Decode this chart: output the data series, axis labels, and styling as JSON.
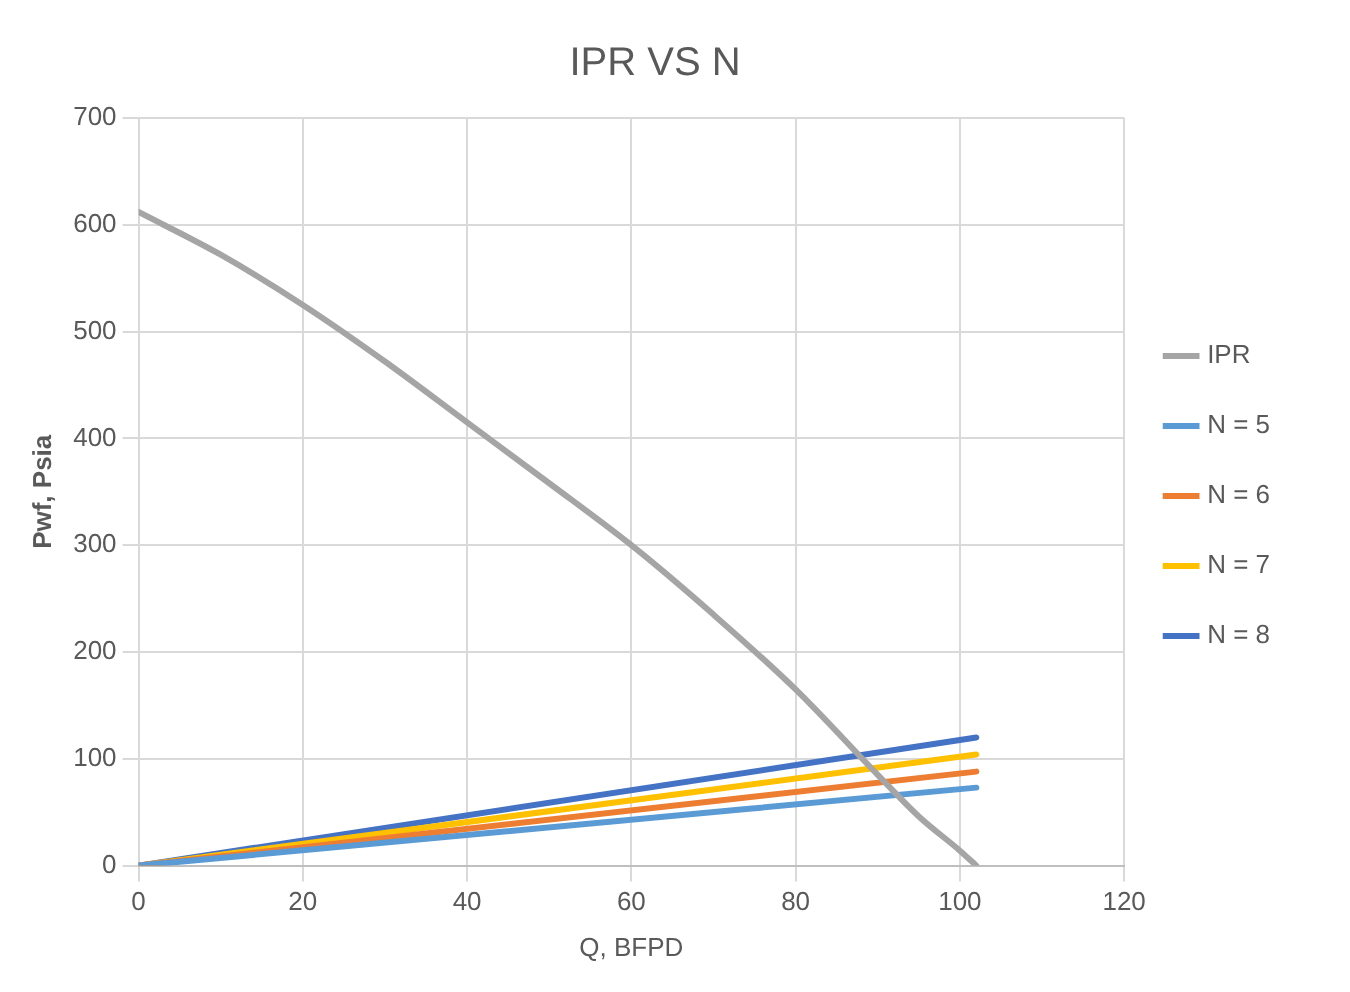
{
  "chart_data": {
    "type": "line",
    "title": "IPR VS N",
    "xlabel": "Q, BFPD",
    "ylabel": "Pwf, Psia",
    "xlim": [
      0,
      120
    ],
    "xticks": [
      0,
      20,
      40,
      60,
      80,
      100,
      120
    ],
    "ylim": [
      0,
      700
    ],
    "yticks": [
      0,
      100,
      200,
      300,
      400,
      500,
      600,
      700
    ],
    "grid": true,
    "legend": "right",
    "marker": "none",
    "line_style": "solid",
    "series": [
      {
        "name": "IPR",
        "color": "#a5a5a5",
        "x": [
          0,
          10,
          20,
          30,
          40,
          50,
          60,
          70,
          80,
          90,
          95,
          100,
          102
        ],
        "values": [
          612,
          572,
          525,
          472,
          415,
          358,
          300,
          235,
          165,
          85,
          46,
          14,
          0
        ]
      },
      {
        "name": "N = 5",
        "color": "#5b9bd5",
        "x": [
          0,
          102
        ],
        "values": [
          0,
          73
        ]
      },
      {
        "name": "N = 6",
        "color": "#ed7d31",
        "x": [
          0,
          102
        ],
        "values": [
          0,
          88
        ]
      },
      {
        "name": "N = 7",
        "color": "#ffc000",
        "x": [
          0,
          102
        ],
        "values": [
          0,
          104
        ]
      },
      {
        "name": "N = 8",
        "color": "#4472c4",
        "x": [
          0,
          102
        ],
        "values": [
          0,
          120
        ]
      }
    ]
  }
}
